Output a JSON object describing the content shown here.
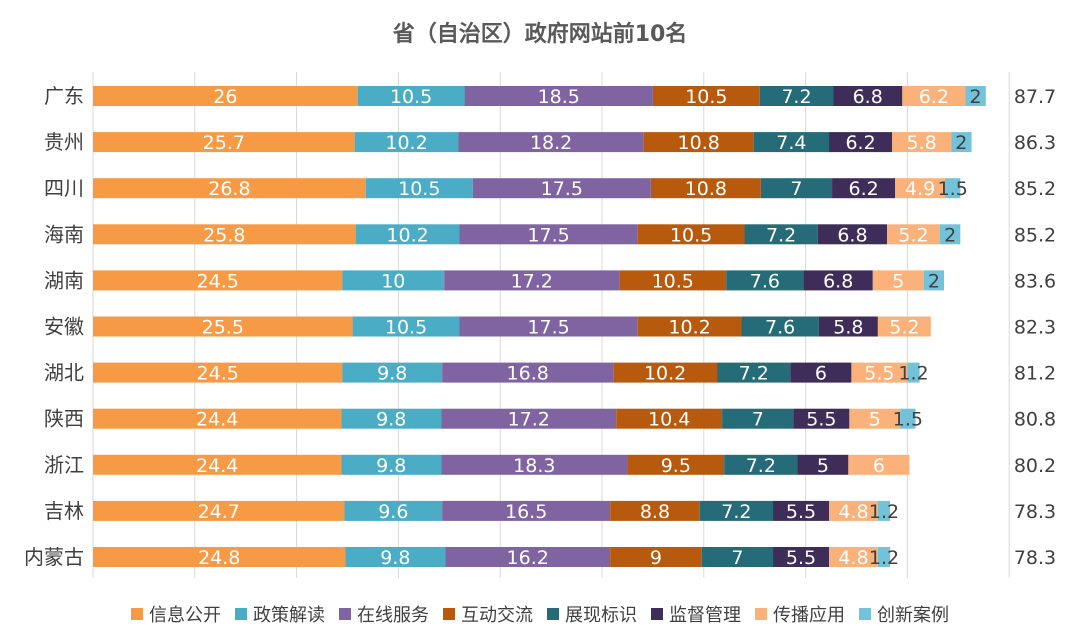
{
  "chart_data": {
    "type": "bar",
    "orientation": "horizontal",
    "stacked": true,
    "title": "省（自治区）政府网站前10名",
    "categories": [
      "广东",
      "贵州",
      "四川",
      "海南",
      "湖南",
      "安徽",
      "湖北",
      "陕西",
      "浙江",
      "吉林",
      "内蒙古"
    ],
    "totals": [
      "87.7",
      "86.3",
      "85.2",
      "85.2",
      "83.6",
      "82.3",
      "81.2",
      "80.8",
      "80.2",
      "78.3",
      "78.3"
    ],
    "series": [
      {
        "name": "信息公开",
        "color": "#F79A45",
        "values": [
          26,
          25.7,
          26.8,
          25.8,
          24.5,
          25.5,
          24.5,
          24.4,
          24.4,
          24.7,
          24.8
        ]
      },
      {
        "name": "政策解读",
        "color": "#4BACC6",
        "values": [
          10.5,
          10.2,
          10.5,
          10.2,
          10,
          10.5,
          9.8,
          9.8,
          9.8,
          9.6,
          9.8
        ]
      },
      {
        "name": "在线服务",
        "color": "#8064A2",
        "values": [
          18.5,
          18.2,
          17.5,
          17.5,
          17.2,
          17.5,
          16.8,
          17.2,
          18.3,
          16.5,
          16.2
        ]
      },
      {
        "name": "互动交流",
        "color": "#B85A0E",
        "values": [
          10.5,
          10.8,
          10.8,
          10.5,
          10.5,
          10.2,
          10.2,
          10.4,
          9.5,
          8.8,
          9
        ]
      },
      {
        "name": "展现标识",
        "color": "#256B78",
        "values": [
          7.2,
          7.4,
          7,
          7.2,
          7.6,
          7.6,
          7.2,
          7,
          7.2,
          7.2,
          7
        ]
      },
      {
        "name": "监督管理",
        "color": "#3F2D59",
        "values": [
          6.8,
          6.2,
          6.2,
          6.8,
          6.8,
          5.8,
          6,
          5.5,
          5,
          5.5,
          5.5
        ]
      },
      {
        "name": "传播应用",
        "color": "#FAB17A",
        "values": [
          6.2,
          5.8,
          4.9,
          5.2,
          5,
          5.2,
          5.5,
          5,
          6,
          4.8,
          4.8
        ]
      },
      {
        "name": "创新案例",
        "color": "#72C2D9",
        "values": [
          2,
          2,
          1.5,
          2,
          2,
          null,
          1.2,
          1.5,
          null,
          1.2,
          1.2
        ]
      }
    ],
    "xlim": [
      0,
      90
    ],
    "grid": "vertical",
    "legend_position": "bottom"
  }
}
